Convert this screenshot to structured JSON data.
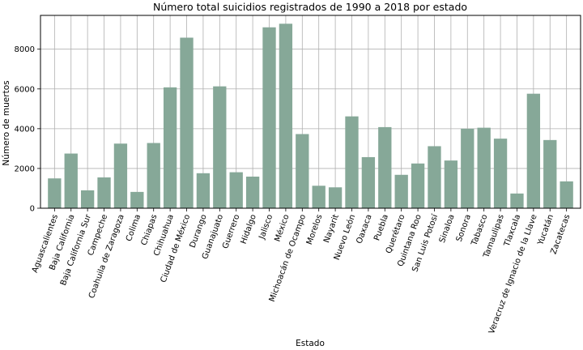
{
  "chart_data": {
    "type": "bar",
    "title": "Número total suicidios registrados de 1990 a 2018 por estado",
    "xlabel": "Estado",
    "ylabel": "Número de muertos",
    "ylim": [
      0,
      9700
    ],
    "yticks": [
      0,
      2000,
      4000,
      6000,
      8000
    ],
    "grid": true,
    "bar_color": "#86a898",
    "categories": [
      "Aguascalientes",
      "Baja California",
      "Baja California Sur",
      "Campeche",
      "Coahuila de Zaragoza",
      "Colima",
      "Chiapas",
      "Chihuahua",
      "Ciudad de México",
      "Durango",
      "Guanajuato",
      "Guerrero",
      "Hidalgo",
      "Jalisco",
      "México",
      "Michoacán de Ocampo",
      "Morelos",
      "Nayarit",
      "Nuevo León",
      "Oaxaca",
      "Puebla",
      "Querétaro",
      "Quintana Roo",
      "San Luis Potosí",
      "Sinaloa",
      "Sonora",
      "Tabasco",
      "Tamaulipas",
      "Tlaxcala",
      "Veracruz de Ignacio de la Llave",
      "Yucatán",
      "Zacatecas"
    ],
    "values": [
      1500,
      2750,
      900,
      1550,
      3250,
      820,
      3280,
      6080,
      8580,
      1760,
      6130,
      1810,
      1590,
      9100,
      9280,
      3730,
      1130,
      1050,
      4620,
      2570,
      4080,
      1680,
      2250,
      3120,
      2400,
      4000,
      4050,
      3500,
      740,
      5760,
      3430,
      1350
    ]
  }
}
